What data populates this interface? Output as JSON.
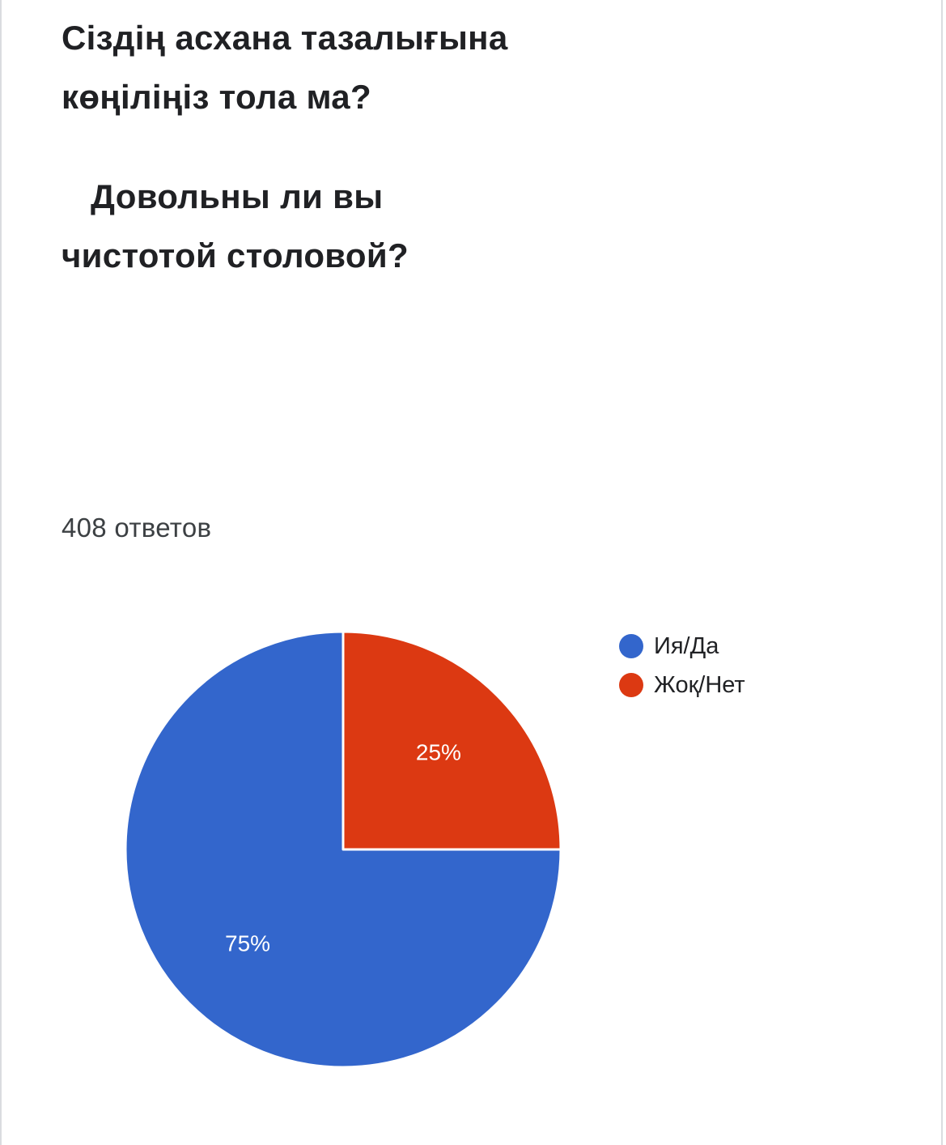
{
  "question": {
    "kz": "Сіздің асхана тазалығына көңіліңіз тола ма?",
    "ru_line1": "Довольны ли вы",
    "ru_line2": "чистотой столовой?"
  },
  "responses_count": "408 ответов",
  "accent": "#1a73e8",
  "chart_data": {
    "type": "pie",
    "title": "",
    "slices": [
      {
        "label": "Ия/Да",
        "value": 75,
        "display": "75%",
        "color": "#3366cc"
      },
      {
        "label": "Жоқ/Нет",
        "value": 25,
        "display": "25%",
        "color": "#dc3912"
      }
    ],
    "legend_position": "right"
  }
}
